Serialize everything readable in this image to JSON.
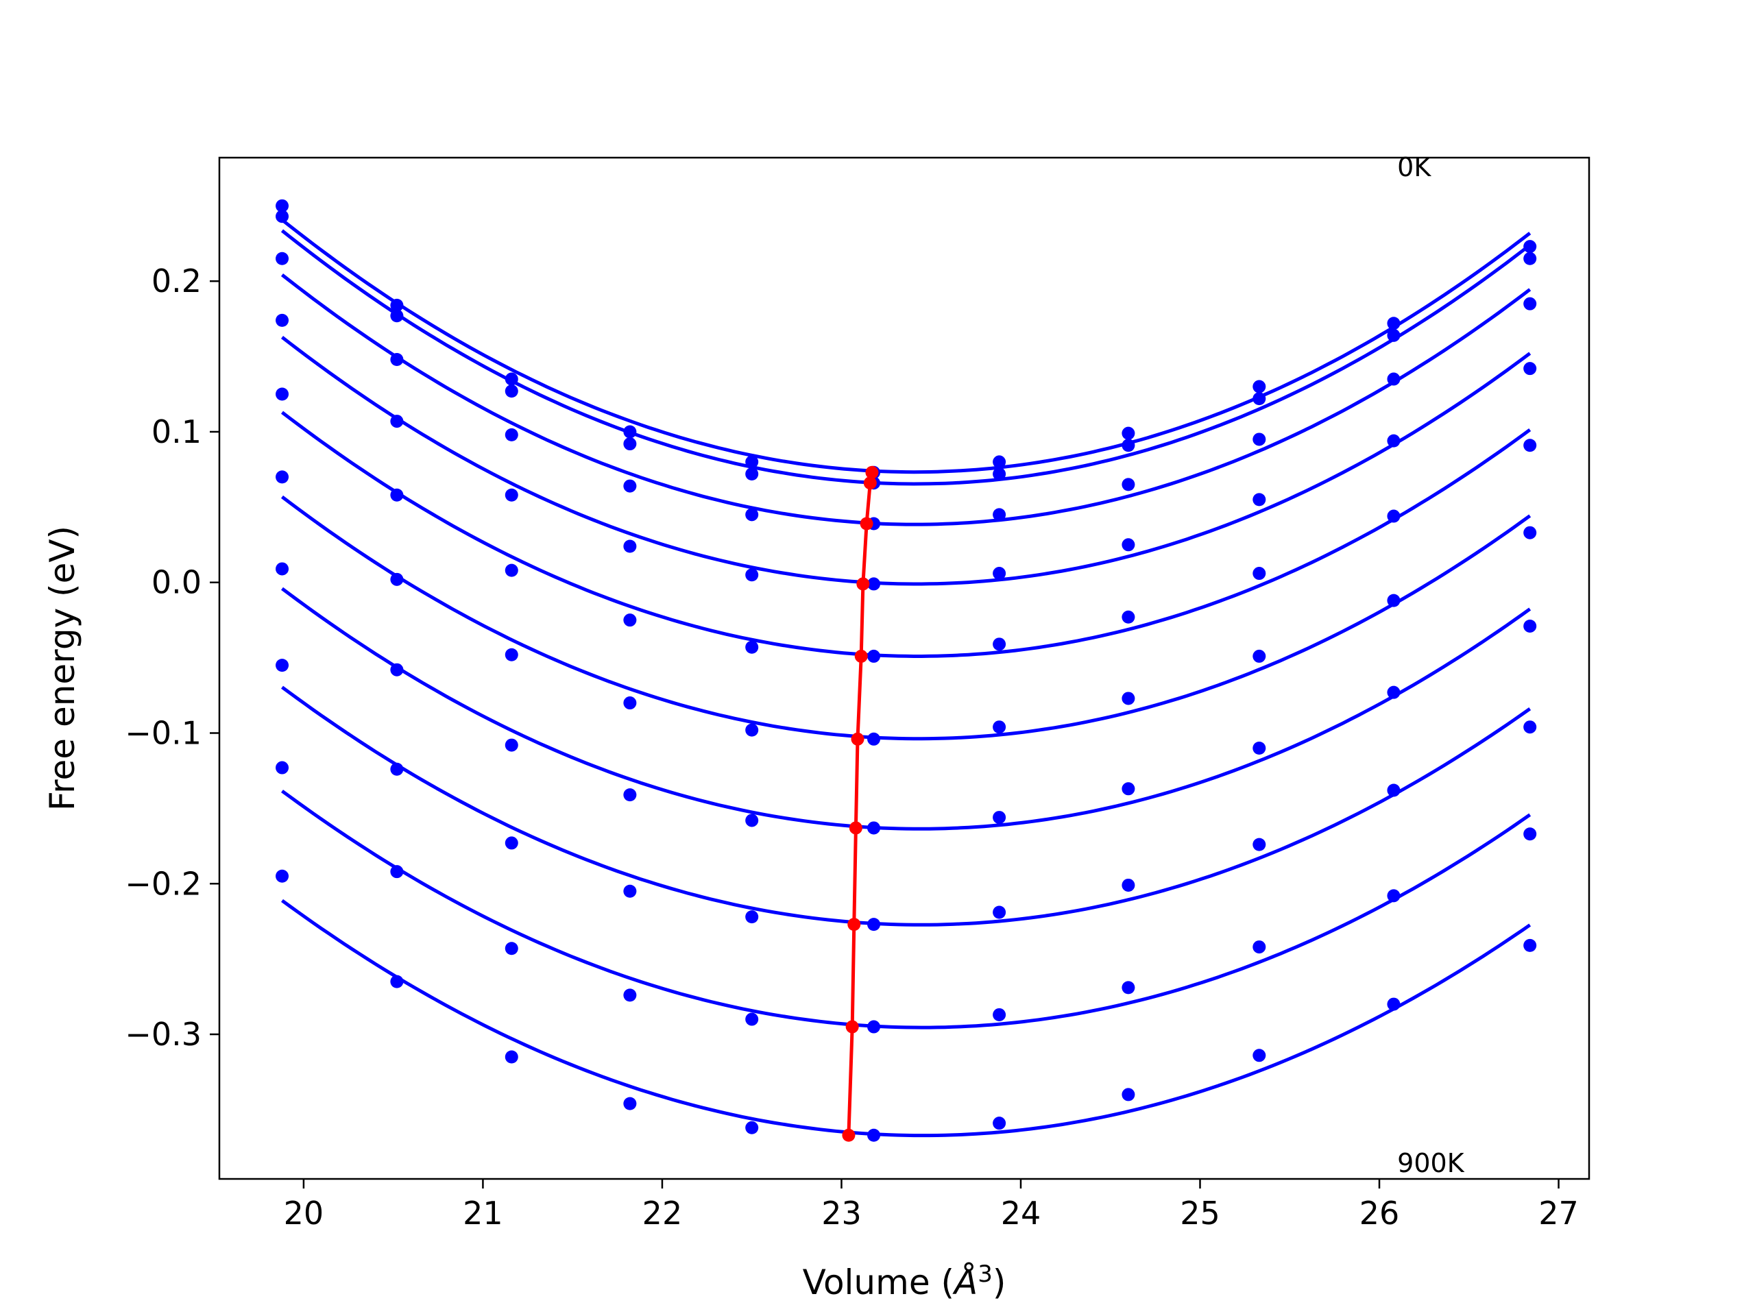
{
  "chart_data": {
    "type": "line",
    "xlabel_main": "Volume (",
    "xlabel_unit": "Å",
    "xlabel_exp": "3",
    "xlabel_close": ")",
    "ylabel": "Free energy (eV)",
    "xlim": [
      19.53,
      27.17
    ],
    "ylim": [
      -0.396,
      0.282
    ],
    "x_ticks": [
      20,
      21,
      22,
      23,
      24,
      25,
      26,
      27
    ],
    "x_tick_labels": [
      "20",
      "21",
      "22",
      "23",
      "24",
      "25",
      "26",
      "27"
    ],
    "y_ticks": [
      0.2,
      0.1,
      0.0,
      -0.1,
      -0.2,
      -0.3
    ],
    "y_tick_labels": [
      "0.2",
      "0.1",
      "0.0",
      "−0.1",
      "−0.2",
      "−0.3"
    ],
    "grid": false,
    "annotations": [
      {
        "text": "0K",
        "x": 26.1,
        "y": 0.276
      },
      {
        "text": "900K",
        "x": 26.1,
        "y": -0.385
      }
    ],
    "volumes": [
      19.88,
      20.52,
      21.16,
      21.82,
      22.5,
      23.18,
      23.88,
      24.6,
      25.33,
      26.08,
      26.84
    ],
    "series_color": "#0000ff",
    "min_color": "#ff0000",
    "series": [
      {
        "values": [
          0.25,
          0.184,
          0.135,
          0.1,
          0.08,
          0.073,
          0.08,
          0.099,
          0.13,
          0.172,
          0.223
        ],
        "min": [
          23.17,
          0.073
        ]
      },
      {
        "values": [
          0.243,
          0.177,
          0.127,
          0.092,
          0.072,
          0.066,
          0.072,
          0.091,
          0.122,
          0.164,
          0.215
        ],
        "min": [
          23.16,
          0.066
        ]
      },
      {
        "values": [
          0.215,
          0.148,
          0.098,
          0.064,
          0.045,
          0.039,
          0.045,
          0.065,
          0.095,
          0.135,
          0.185
        ],
        "min": [
          23.14,
          0.039
        ]
      },
      {
        "values": [
          0.174,
          0.107,
          0.058,
          0.024,
          0.005,
          -0.001,
          0.006,
          0.025,
          0.055,
          0.094,
          0.142
        ],
        "min": [
          23.12,
          -0.001
        ]
      },
      {
        "values": [
          0.125,
          0.058,
          0.008,
          -0.025,
          -0.043,
          -0.049,
          -0.041,
          -0.023,
          0.006,
          0.044,
          0.091
        ],
        "min": [
          23.11,
          -0.049
        ]
      },
      {
        "values": [
          0.07,
          0.002,
          -0.048,
          -0.08,
          -0.098,
          -0.104,
          -0.096,
          -0.077,
          -0.049,
          -0.012,
          0.033
        ],
        "min": [
          23.09,
          -0.104
        ]
      },
      {
        "values": [
          0.009,
          -0.058,
          -0.108,
          -0.141,
          -0.158,
          -0.163,
          -0.156,
          -0.137,
          -0.11,
          -0.073,
          -0.029
        ],
        "min": [
          23.08,
          -0.163
        ]
      },
      {
        "values": [
          -0.055,
          -0.124,
          -0.173,
          -0.205,
          -0.222,
          -0.227,
          -0.219,
          -0.201,
          -0.174,
          -0.138,
          -0.096
        ],
        "min": [
          23.07,
          -0.227
        ]
      },
      {
        "values": [
          -0.123,
          -0.192,
          -0.243,
          -0.274,
          -0.29,
          -0.295,
          -0.287,
          -0.269,
          -0.242,
          -0.208,
          -0.167
        ],
        "min": [
          23.06,
          -0.295
        ]
      },
      {
        "values": [
          -0.195,
          -0.265,
          -0.315,
          -0.346,
          -0.362,
          -0.367,
          -0.359,
          -0.34,
          -0.314,
          -0.28,
          -0.241
        ],
        "min": [
          23.04,
          -0.367
        ]
      }
    ]
  }
}
